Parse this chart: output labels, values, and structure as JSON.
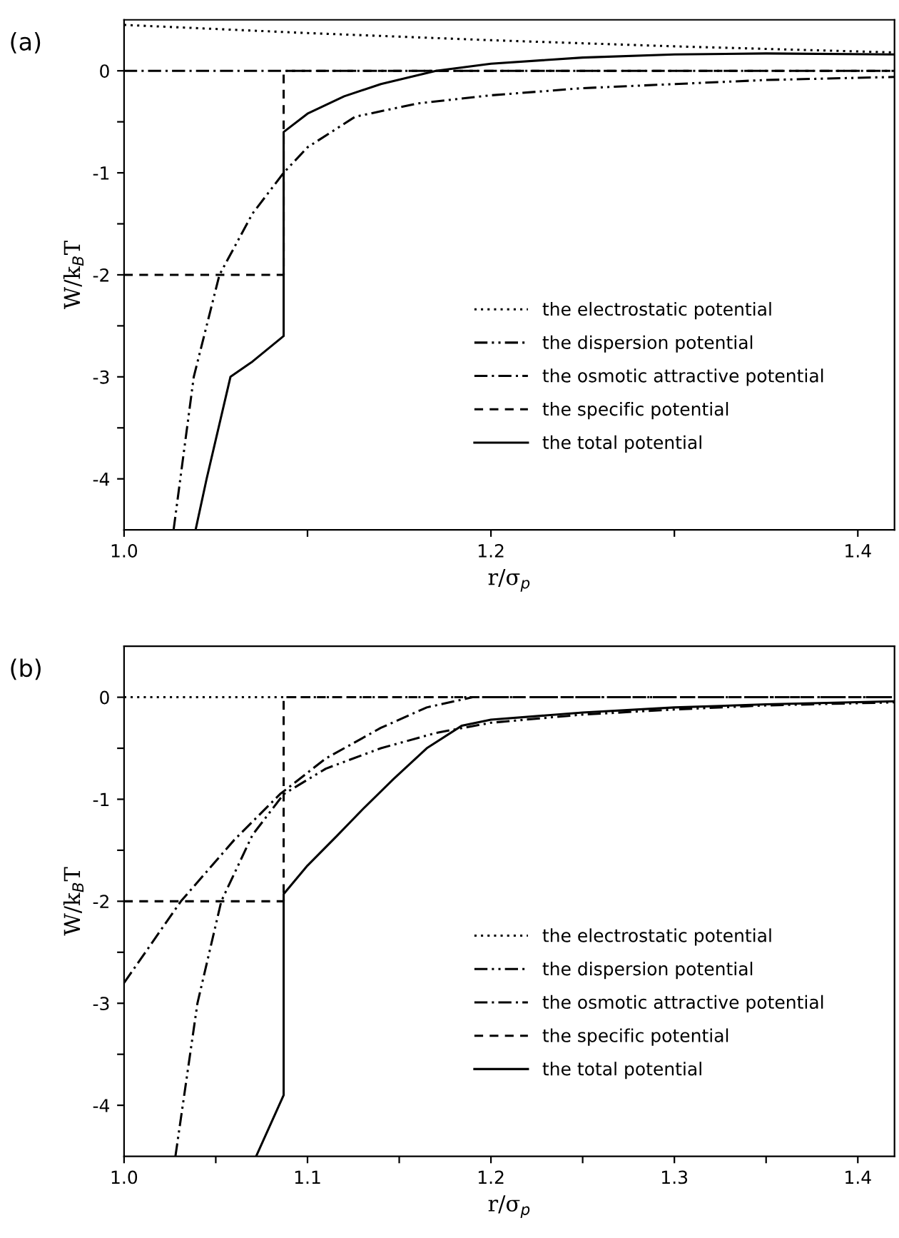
{
  "chart_data": [
    {
      "type": "line",
      "title": "(a)",
      "xlabel": "r/σ$_{p}$",
      "ylabel": "W/k$_{B}$T",
      "xlim": [
        1.0,
        1.42
      ],
      "ylim": [
        -4.5,
        0.5
      ],
      "xticks": [
        {
          "value": 1.0,
          "label": "1.0"
        },
        {
          "value": 1.1,
          "label": null
        },
        {
          "value": 1.2,
          "label": "1.2"
        },
        {
          "value": 1.3,
          "label": null
        },
        {
          "value": 1.4,
          "label": "1.4"
        }
      ],
      "yticks": [
        -4,
        {
          "value": -3.5,
          "label": null
        },
        -3,
        {
          "value": -2.5,
          "label": null
        },
        -2,
        {
          "value": -1.5,
          "label": null
        },
        -1,
        {
          "value": -0.5,
          "label": null
        },
        0
      ],
      "legend": "bottom right",
      "grid": false,
      "series": [
        {
          "name": "the electrostatic potential",
          "color": "#000000",
          "line_style": "dotted",
          "x": [
            1.0,
            1.1,
            1.2,
            1.3,
            1.42
          ],
          "values": [
            0.45,
            0.37,
            0.3,
            0.24,
            0.18
          ]
        },
        {
          "name": "the dispersion potential",
          "color": "#000000",
          "line_style": "dashdotdot",
          "x": [
            1.027,
            1.038,
            1.052,
            1.07,
            1.087,
            1.1,
            1.126,
            1.16,
            1.2,
            1.25,
            1.3,
            1.35,
            1.42
          ],
          "values": [
            -4.5,
            -3,
            -2,
            -1.4,
            -1.0,
            -0.75,
            -0.45,
            -0.32,
            -0.24,
            -0.17,
            -0.13,
            -0.09,
            -0.06
          ]
        },
        {
          "name": "the osmotic attractive potential",
          "color": "#000000",
          "line_style": "dashdot",
          "x": [
            1.0,
            1.42
          ],
          "values": [
            0,
            0
          ]
        },
        {
          "name": "the specific potential",
          "color": "#000000",
          "line_style": "dashed",
          "x": [
            1.0,
            1.087,
            1.087,
            1.42
          ],
          "values": [
            -2,
            -2,
            0,
            0
          ]
        },
        {
          "name": "the total potential",
          "color": "#000000",
          "line_style": "solid",
          "x": [
            1.039,
            1.045,
            1.058,
            1.07,
            1.087,
            1.087,
            1.1,
            1.12,
            1.14,
            1.17,
            1.2,
            1.25,
            1.3,
            1.35,
            1.42
          ],
          "values": [
            -4.5,
            -4.0,
            -3.0,
            -2.85,
            -2.6,
            -0.6,
            -0.42,
            -0.25,
            -0.13,
            0,
            0.07,
            0.13,
            0.16,
            0.17,
            0.16
          ]
        }
      ]
    },
    {
      "type": "line",
      "title": "(b)",
      "xlabel": "r/σ$_{p}$",
      "ylabel": "W/k$_{B}$T",
      "xlim": [
        1.0,
        1.42
      ],
      "ylim": [
        -4.5,
        0.5
      ],
      "xticks": [
        {
          "value": 1.0,
          "label": "1.0"
        },
        {
          "value": 1.05,
          "label": null
        },
        {
          "value": 1.1,
          "label": "1.1"
        },
        {
          "value": 1.15,
          "label": null
        },
        {
          "value": 1.2,
          "label": "1.2"
        },
        {
          "value": 1.25,
          "label": null
        },
        {
          "value": 1.3,
          "label": "1.3"
        },
        {
          "value": 1.35,
          "label": null
        },
        {
          "value": 1.4,
          "label": "1.4"
        }
      ],
      "yticks": [
        -4,
        {
          "value": -3.5,
          "label": null
        },
        -3,
        {
          "value": -2.5,
          "label": null
        },
        -2,
        {
          "value": -1.5,
          "label": null
        },
        -1,
        {
          "value": -0.5,
          "label": null
        },
        0
      ],
      "legend": "bottom right",
      "grid": false,
      "series": [
        {
          "name": "the electrostatic potential",
          "color": "#000000",
          "line_style": "dotted",
          "x": [
            1.0,
            1.42
          ],
          "values": [
            0,
            0
          ]
        },
        {
          "name": "the dispersion potential",
          "color": "#000000",
          "line_style": "dashdotdot",
          "x": [
            1.028,
            1.04,
            1.053,
            1.07,
            1.087,
            1.11,
            1.14,
            1.17,
            1.2,
            1.25,
            1.3,
            1.35,
            1.42
          ],
          "values": [
            -4.5,
            -3,
            -2,
            -1.35,
            -0.95,
            -0.7,
            -0.5,
            -0.35,
            -0.25,
            -0.17,
            -0.12,
            -0.08,
            -0.05
          ]
        },
        {
          "name": "the osmotic attractive potential",
          "color": "#000000",
          "line_style": "dashdot",
          "x": [
            1.0,
            1.031,
            1.06,
            1.085,
            1.11,
            1.14,
            1.165,
            1.19,
            1.42
          ],
          "values": [
            -2.8,
            -2,
            -1.4,
            -0.95,
            -0.6,
            -0.3,
            -0.1,
            0,
            0
          ]
        },
        {
          "name": "the specific potential",
          "color": "#000000",
          "line_style": "dashed",
          "x": [
            1.0,
            1.087,
            1.087,
            1.42
          ],
          "values": [
            -2,
            -2,
            0,
            0
          ]
        },
        {
          "name": "the total potential",
          "color": "#000000",
          "line_style": "solid",
          "x": [
            1.072,
            1.087,
            1.087,
            1.1,
            1.116,
            1.13,
            1.147,
            1.165,
            1.184,
            1.2,
            1.25,
            1.3,
            1.35,
            1.42
          ],
          "values": [
            -4.5,
            -3.9,
            -1.93,
            -1.65,
            -1.36,
            -1.1,
            -0.8,
            -0.5,
            -0.28,
            -0.22,
            -0.15,
            -0.1,
            -0.07,
            -0.04
          ]
        }
      ]
    }
  ]
}
